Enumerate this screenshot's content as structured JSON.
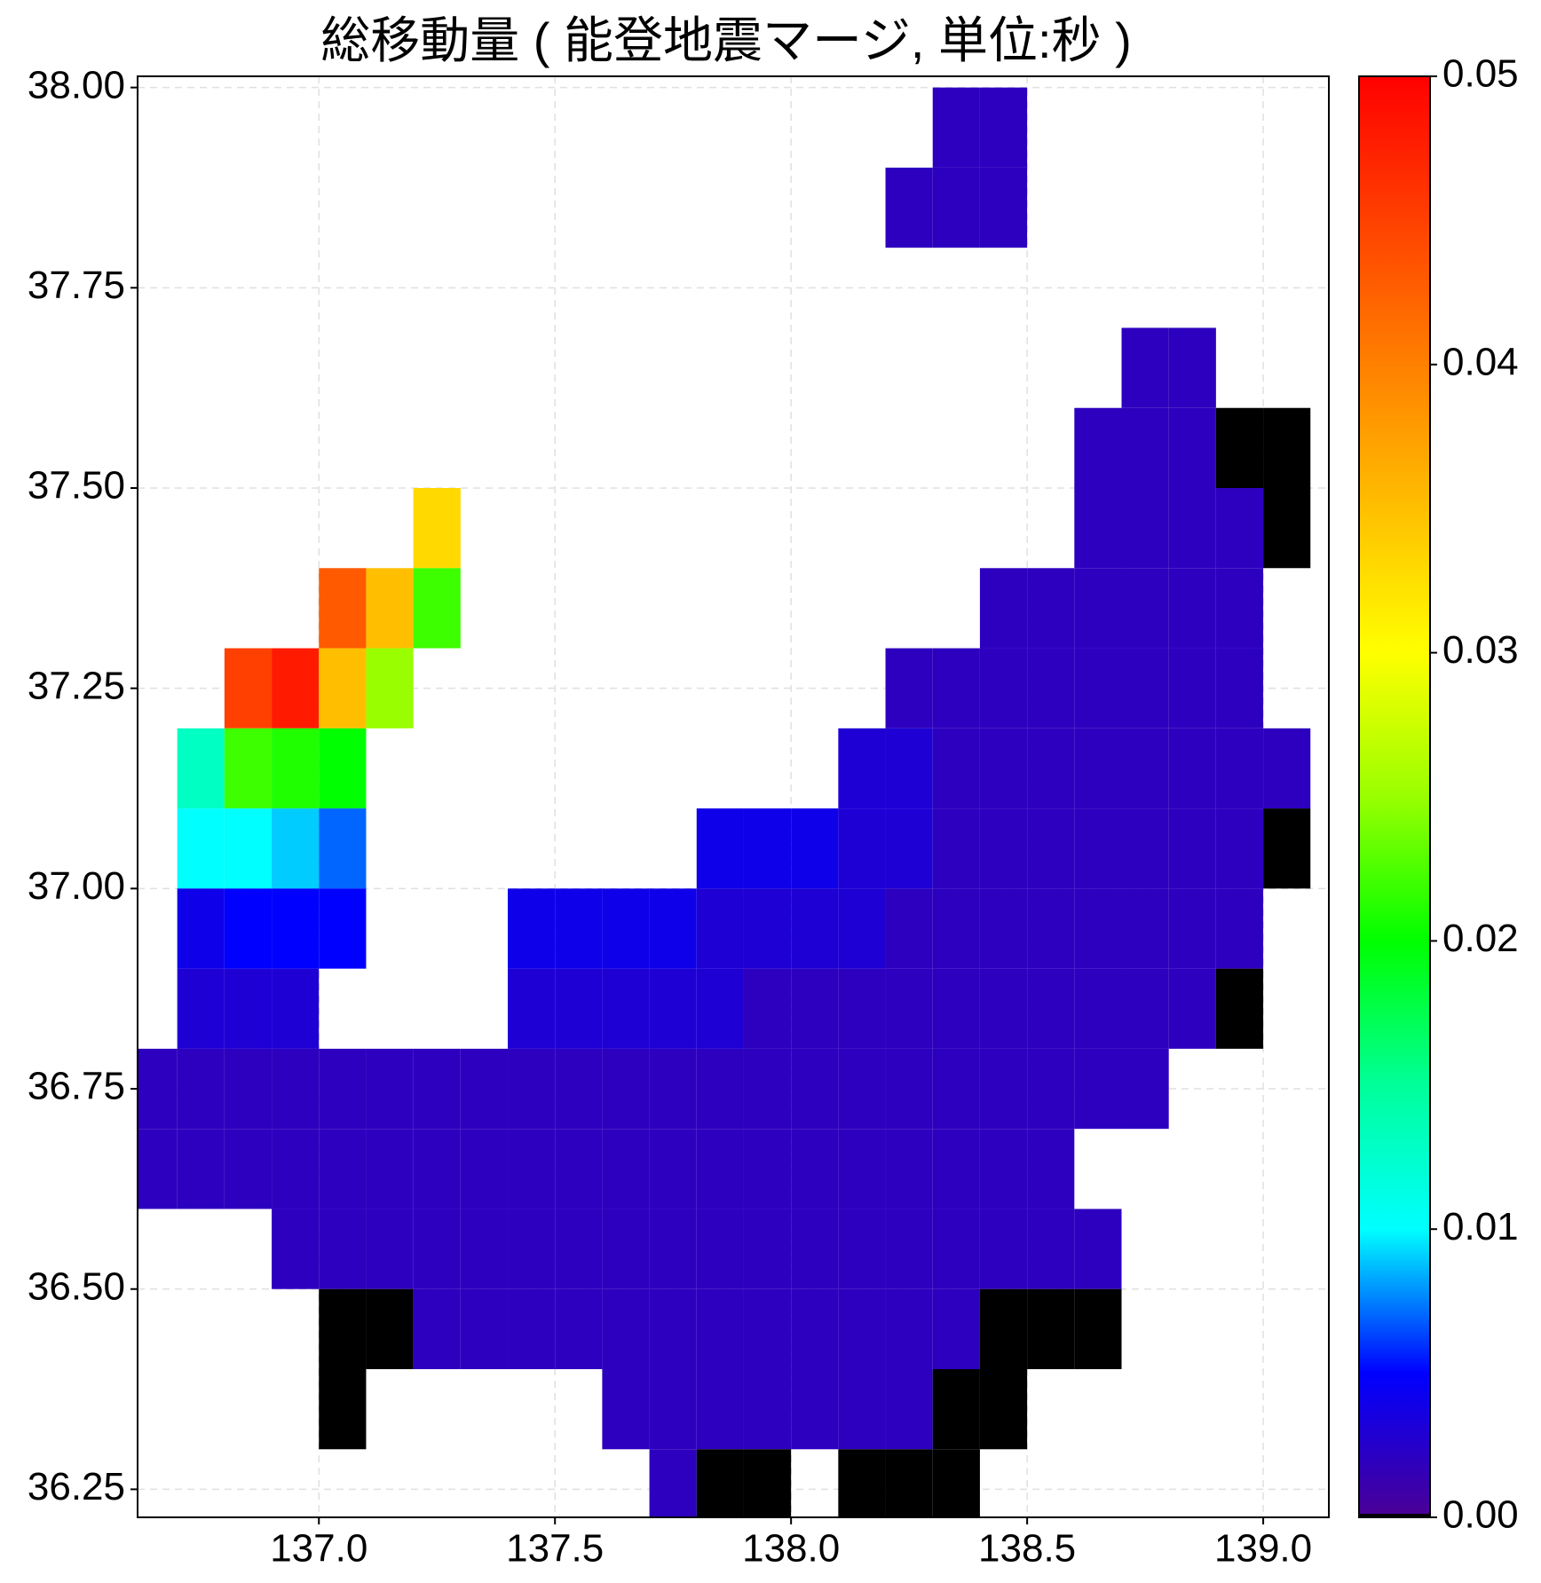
{
  "chart_data": {
    "type": "scatter",
    "title": "総移動量 ( 能登地震マージ, 単位:秒 )",
    "xlim": [
      136.616,
      139.139
    ],
    "ylim": [
      36.215,
      38.014
    ],
    "xticks": [
      {
        "value": 137,
        "label": "137.0"
      },
      {
        "value": 137.5,
        "label": "137.5"
      },
      {
        "value": 138,
        "label": "138.0"
      },
      {
        "value": 138.5,
        "label": "138.5"
      },
      {
        "value": 139,
        "label": "139.0"
      }
    ],
    "yticks": [
      {
        "value": 38,
        "label": "38.00"
      },
      37.75,
      {
        "value": 37.5,
        "label": "37.50"
      },
      37.25,
      {
        "value": 37,
        "label": "37.00"
      },
      36.75,
      {
        "value": 36.5,
        "label": "36.50"
      },
      36.25
    ],
    "grid": true,
    "clim": [
      0,
      0.05
    ],
    "colorbar_ticks": [
      {
        "value": 0,
        "label": "0.00"
      },
      {
        "value": 0.01,
        "label": "0.01"
      },
      {
        "value": 0.02,
        "label": "0.02"
      },
      {
        "value": 0.03,
        "label": "0.03"
      },
      {
        "value": 0.04,
        "label": "0.04"
      },
      0.05
    ],
    "colormap": [
      "#4b0095",
      "#0000ff",
      "#00ffff",
      "#00ff99",
      "#00ff00",
      "#99ff00",
      "#ffff00",
      "#ffbf00",
      "#ff8000",
      "#ff4000",
      "#ff0000"
    ],
    "under_color": "#000000",
    "x": [
      138.35,
      138.45,
      138.25,
      138.35,
      138.45,
      138.75,
      138.85,
      138.65,
      138.75,
      138.85,
      138.95,
      139.05,
      137.25,
      138.65,
      138.75,
      138.85,
      138.95,
      139.05,
      137.05,
      137.15,
      137.25,
      138.45,
      138.55,
      138.65,
      138.75,
      138.85,
      138.95,
      136.85,
      136.95,
      137.05,
      137.15,
      138.25,
      138.35,
      138.45,
      138.55,
      138.65,
      138.75,
      138.85,
      138.95,
      136.75,
      136.85,
      136.95,
      137.05,
      138.15,
      138.25,
      138.35,
      138.45,
      138.55,
      138.65,
      138.75,
      138.85,
      138.95,
      139.05,
      136.75,
      136.85,
      136.95,
      137.05,
      137.85,
      137.95,
      138.05,
      138.15,
      138.25,
      138.35,
      138.45,
      138.55,
      138.65,
      138.75,
      138.85,
      138.95,
      139.05,
      136.75,
      136.85,
      136.95,
      137.05,
      137.45,
      137.55,
      137.65,
      137.75,
      137.85,
      137.95,
      138.05,
      138.15,
      138.25,
      138.35,
      138.45,
      138.55,
      138.65,
      138.75,
      138.85,
      138.95,
      136.75,
      136.85,
      136.95,
      137.45,
      137.55,
      137.65,
      137.75,
      137.85,
      137.95,
      138.05,
      138.15,
      138.25,
      138.35,
      138.45,
      138.55,
      138.65,
      138.75,
      138.85,
      138.95,
      136.65,
      136.75,
      136.85,
      136.95,
      137.05,
      137.15,
      137.25,
      137.35,
      137.45,
      137.55,
      137.65,
      137.75,
      137.85,
      137.95,
      138.05,
      138.15,
      138.25,
      138.35,
      138.45,
      138.55,
      138.65,
      138.75,
      136.65,
      136.75,
      136.85,
      136.95,
      137.05,
      137.15,
      137.25,
      137.35,
      137.45,
      137.55,
      137.65,
      137.75,
      137.85,
      137.95,
      138.05,
      138.15,
      138.25,
      138.35,
      138.45,
      138.55,
      136.95,
      137.05,
      137.15,
      137.25,
      137.35,
      137.45,
      137.55,
      137.65,
      137.75,
      137.85,
      137.95,
      138.05,
      138.15,
      138.25,
      138.35,
      138.45,
      138.55,
      138.65,
      137.05,
      137.15,
      137.25,
      137.35,
      137.45,
      137.55,
      137.65,
      137.75,
      137.85,
      137.95,
      138.05,
      138.15,
      138.25,
      138.35,
      138.45,
      138.55,
      138.65,
      137.05,
      137.65,
      137.75,
      137.85,
      137.95,
      138.05,
      138.15,
      138.25,
      138.35,
      138.45,
      137.75,
      137.85,
      137.95,
      138.15,
      138.25,
      138.35
    ],
    "y": [
      37.95,
      37.95,
      37.85,
      37.85,
      37.85,
      37.65,
      37.65,
      37.55,
      37.55,
      37.55,
      37.55,
      37.55,
      37.45,
      37.45,
      37.45,
      37.45,
      37.45,
      37.45,
      37.35,
      37.35,
      37.35,
      37.35,
      37.35,
      37.35,
      37.35,
      37.35,
      37.35,
      37.25,
      37.25,
      37.25,
      37.25,
      37.25,
      37.25,
      37.25,
      37.25,
      37.25,
      37.25,
      37.25,
      37.25,
      37.15,
      37.15,
      37.15,
      37.15,
      37.15,
      37.15,
      37.15,
      37.15,
      37.15,
      37.15,
      37.15,
      37.15,
      37.15,
      37.15,
      37.05,
      37.05,
      37.05,
      37.05,
      37.05,
      37.05,
      37.05,
      37.05,
      37.05,
      37.05,
      37.05,
      37.05,
      37.05,
      37.05,
      37.05,
      37.05,
      37.05,
      36.95,
      36.95,
      36.95,
      36.95,
      36.95,
      36.95,
      36.95,
      36.95,
      36.95,
      36.95,
      36.95,
      36.95,
      36.95,
      36.95,
      36.95,
      36.95,
      36.95,
      36.95,
      36.95,
      36.95,
      36.85,
      36.85,
      36.85,
      36.85,
      36.85,
      36.85,
      36.85,
      36.85,
      36.85,
      36.85,
      36.85,
      36.85,
      36.85,
      36.85,
      36.85,
      36.85,
      36.85,
      36.85,
      36.85,
      36.75,
      36.75,
      36.75,
      36.75,
      36.75,
      36.75,
      36.75,
      36.75,
      36.75,
      36.75,
      36.75,
      36.75,
      36.75,
      36.75,
      36.75,
      36.75,
      36.75,
      36.75,
      36.75,
      36.75,
      36.75,
      36.75,
      36.65,
      36.65,
      36.65,
      36.65,
      36.65,
      36.65,
      36.65,
      36.65,
      36.65,
      36.65,
      36.65,
      36.65,
      36.65,
      36.65,
      36.65,
      36.65,
      36.65,
      36.65,
      36.65,
      36.65,
      36.55,
      36.55,
      36.55,
      36.55,
      36.55,
      36.55,
      36.55,
      36.55,
      36.55,
      36.55,
      36.55,
      36.55,
      36.55,
      36.55,
      36.55,
      36.55,
      36.55,
      36.55,
      36.45,
      36.45,
      36.45,
      36.45,
      36.45,
      36.45,
      36.45,
      36.45,
      36.45,
      36.45,
      36.45,
      36.45,
      36.45,
      36.45,
      36.45,
      36.45,
      36.45,
      36.35,
      36.35,
      36.35,
      36.35,
      36.35,
      36.35,
      36.35,
      36.35,
      36.35,
      36.35,
      36.25,
      36.25,
      36.25,
      36.25,
      36.25,
      36.25
    ],
    "values": [
      0.002,
      0.002,
      0.002,
      0.002,
      0.002,
      0.002,
      0.002,
      0.002,
      0.002,
      0.002,
      0,
      0,
      0.033,
      0.002,
      0.002,
      0.002,
      0.002,
      0,
      0.043,
      0.035,
      0.022,
      0.002,
      0.002,
      0.002,
      0.002,
      0.002,
      0.002,
      0.045,
      0.048,
      0.035,
      0.025,
      0.002,
      0.002,
      0.002,
      0.002,
      0.002,
      0.002,
      0.002,
      0.002,
      0.013,
      0.022,
      0.021,
      0.02,
      0.003,
      0.003,
      0.002,
      0.002,
      0.002,
      0.002,
      0.002,
      0.002,
      0.002,
      0.002,
      0.01,
      0.01,
      0.009,
      0.007,
      0.004,
      0.004,
      0.004,
      0.003,
      0.003,
      0.002,
      0.002,
      0.002,
      0.002,
      0.002,
      0.002,
      0.002,
      0,
      0.004,
      0.005,
      0.005,
      0.005,
      0.004,
      0.004,
      0.004,
      0.004,
      0.003,
      0.003,
      0.003,
      0.003,
      0.002,
      0.002,
      0.002,
      0.002,
      0.002,
      0.002,
      0.002,
      0.002,
      0.003,
      0.003,
      0.003,
      0.003,
      0.003,
      0.003,
      0.003,
      0.003,
      0.002,
      0.002,
      0.002,
      0.002,
      0.002,
      0.002,
      0.002,
      0.002,
      0.002,
      0.002,
      0,
      0.002,
      0.002,
      0.002,
      0.002,
      0.002,
      0.002,
      0.002,
      0.002,
      0.002,
      0.002,
      0.002,
      0.002,
      0.002,
      0.002,
      0.002,
      0.002,
      0.002,
      0.002,
      0.002,
      0.002,
      0.002,
      0.002,
      0.002,
      0.002,
      0.002,
      0.002,
      0.002,
      0.002,
      0.002,
      0.002,
      0.002,
      0.002,
      0.002,
      0.002,
      0.002,
      0.002,
      0.002,
      0.002,
      0.002,
      0.002,
      0.002,
      0.002,
      0.002,
      0.002,
      0.002,
      0.002,
      0.002,
      0.002,
      0.002,
      0.002,
      0.002,
      0.002,
      0.002,
      0.002,
      0.002,
      0.002,
      0.002,
      0.002,
      0.002,
      0.002,
      0,
      0,
      0.002,
      0.002,
      0.002,
      0.002,
      0.002,
      0.002,
      0.002,
      0.002,
      0.002,
      0.002,
      0.002,
      0.002,
      0,
      0,
      0,
      0,
      0.002,
      0.002,
      0.002,
      0.002,
      0.002,
      0.002,
      0.002,
      0,
      0,
      0.002,
      0,
      0,
      0,
      0,
      0
    ]
  }
}
